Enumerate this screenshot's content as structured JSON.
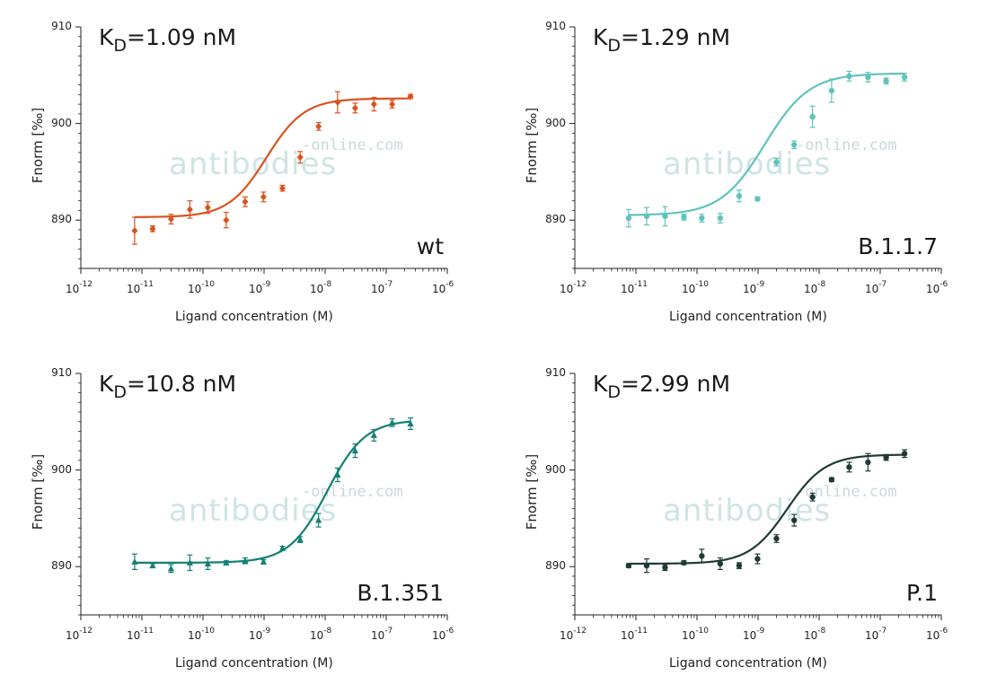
{
  "watermark": {
    "line1": "-online.com",
    "line2": "antibodies"
  },
  "chart_data": [
    {
      "type": "scatter",
      "kd_prefix": "K",
      "kd_sub": "D",
      "kd_value": "=1.09 nM",
      "variant": "wt",
      "color": "#d9531e",
      "marker": "diamond",
      "xlabel": "Ligand concentration (M)",
      "ylabel": "Fnorm [‰]",
      "xscale": "log",
      "xlim_exp": [
        -12,
        -6
      ],
      "ylim": [
        885,
        910
      ],
      "yticks": [
        890,
        900,
        910
      ],
      "fit": {
        "bottom": 890.3,
        "top": 902.6,
        "kd_M": 1.09e-09,
        "hill": 1.4
      },
      "series": [
        {
          "x": [
            7.6e-12,
            1.5e-11,
            3e-11,
            6.1e-11,
            1.2e-10,
            2.4e-10,
            4.9e-10,
            9.8e-10,
            2e-09,
            3.9e-09,
            7.8e-09,
            1.6e-08,
            3.1e-08,
            6.3e-08,
            1.25e-07,
            2.5e-07
          ],
          "y": [
            888.9,
            889.1,
            890.1,
            891.1,
            891.3,
            890.0,
            891.9,
            892.4,
            893.3,
            896.5,
            899.7,
            902.2,
            901.6,
            902.0,
            902.0,
            902.8
          ],
          "err": [
            1.4,
            0.3,
            0.5,
            0.9,
            0.6,
            0.8,
            0.5,
            0.5,
            0.3,
            0.6,
            0.4,
            1.1,
            0.5,
            0.7,
            0.4,
            0.2
          ]
        }
      ]
    },
    {
      "type": "scatter",
      "kd_prefix": "K",
      "kd_sub": "D",
      "kd_value": "=1.29 nM",
      "variant": "B.1.1.7",
      "color": "#5fc3bd",
      "marker": "circle",
      "xlabel": "Ligand concentration (M)",
      "ylabel": "Fnorm [‰]",
      "xscale": "log",
      "xlim_exp": [
        -12,
        -6
      ],
      "ylim": [
        885,
        910
      ],
      "yticks": [
        890,
        900,
        910
      ],
      "fit": {
        "bottom": 890.5,
        "top": 905.2,
        "kd_M": 1.29e-09,
        "hill": 1.2
      },
      "series": [
        {
          "x": [
            7.6e-12,
            1.5e-11,
            3e-11,
            6.1e-11,
            1.2e-10,
            2.4e-10,
            4.9e-10,
            9.8e-10,
            2e-09,
            3.9e-09,
            7.8e-09,
            1.6e-08,
            3.1e-08,
            6.3e-08,
            1.25e-07,
            2.5e-07
          ],
          "y": [
            890.2,
            890.4,
            890.4,
            890.3,
            890.2,
            890.2,
            892.5,
            892.2,
            896.0,
            897.8,
            900.7,
            903.4,
            904.9,
            904.8,
            904.4,
            904.8
          ],
          "err": [
            0.9,
            0.9,
            1.0,
            0.3,
            0.4,
            0.5,
            0.6,
            0.2,
            0.4,
            0.4,
            1.1,
            1.2,
            0.5,
            0.5,
            0.3,
            0.4
          ]
        }
      ]
    },
    {
      "type": "scatter",
      "kd_prefix": "K",
      "kd_sub": "D",
      "kd_value": "=10.8 nM",
      "variant": "B.1.351",
      "color": "#137f75",
      "marker": "triangle",
      "xlabel": "Ligand concentration (M)",
      "ylabel": "Fnorm [‰]",
      "xscale": "log",
      "xlim_exp": [
        -12,
        -6
      ],
      "ylim": [
        885,
        910
      ],
      "yticks": [
        890,
        900,
        910
      ],
      "fit": {
        "bottom": 890.4,
        "top": 905.2,
        "kd_M": 1.08e-08,
        "hill": 1.4
      },
      "series": [
        {
          "x": [
            7.6e-12,
            1.5e-11,
            3e-11,
            6.1e-11,
            1.2e-10,
            2.4e-10,
            4.9e-10,
            9.8e-10,
            2e-09,
            3.9e-09,
            7.8e-09,
            1.6e-08,
            3.1e-08,
            6.3e-08,
            1.25e-07,
            2.5e-07
          ],
          "y": [
            890.5,
            890.1,
            889.8,
            890.4,
            890.3,
            890.4,
            890.6,
            890.5,
            891.9,
            892.8,
            894.8,
            899.5,
            902.0,
            903.6,
            904.9,
            904.8
          ],
          "err": [
            0.8,
            0.2,
            0.4,
            0.8,
            0.6,
            0.2,
            0.3,
            0.2,
            0.2,
            0.3,
            0.7,
            0.7,
            0.7,
            0.6,
            0.4,
            0.6
          ]
        }
      ]
    },
    {
      "type": "scatter",
      "kd_prefix": "K",
      "kd_sub": "D",
      "kd_value": "=2.99 nM",
      "variant": "P.1",
      "color": "#1f3b36",
      "marker": "circle",
      "xlabel": "Ligand concentration (M)",
      "ylabel": "Fnorm [‰]",
      "xscale": "log",
      "xlim_exp": [
        -12,
        -6
      ],
      "ylim": [
        885,
        910
      ],
      "yticks": [
        890,
        900,
        910
      ],
      "fit": {
        "bottom": 890.3,
        "top": 901.6,
        "kd_M": 2.99e-09,
        "hill": 1.4
      },
      "series": [
        {
          "x": [
            7.6e-12,
            1.5e-11,
            3e-11,
            6.1e-11,
            1.2e-10,
            2.4e-10,
            4.9e-10,
            9.8e-10,
            2e-09,
            3.9e-09,
            7.8e-09,
            1.6e-08,
            3.1e-08,
            6.3e-08,
            1.25e-07,
            2.5e-07
          ],
          "y": [
            890.1,
            890.1,
            889.9,
            890.4,
            891.1,
            890.3,
            890.1,
            890.8,
            892.9,
            894.8,
            897.2,
            899.0,
            900.3,
            900.8,
            901.3,
            901.7
          ],
          "err": [
            0.2,
            0.7,
            0.3,
            0.2,
            0.7,
            0.6,
            0.3,
            0.5,
            0.4,
            0.6,
            0.4,
            0.2,
            0.5,
            0.9,
            0.3,
            0.4
          ]
        }
      ]
    }
  ]
}
